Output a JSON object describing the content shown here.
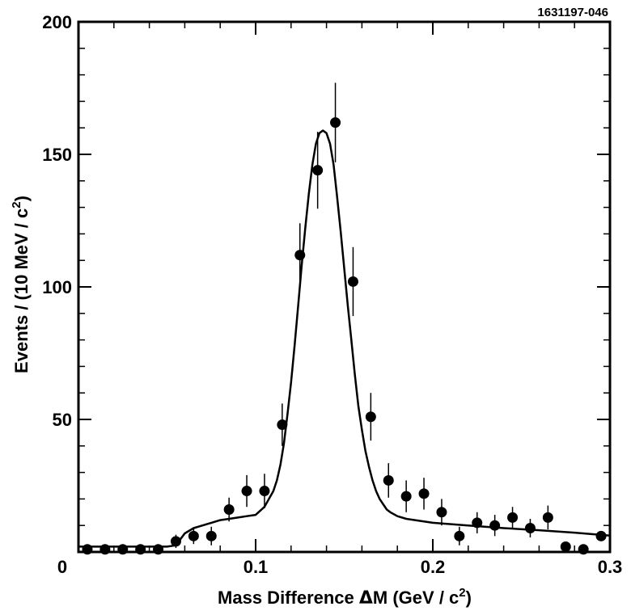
{
  "chart_data": {
    "type": "scatter",
    "plot_id": "1631197-046",
    "xlabel_main": "Mass  Difference  ",
    "xlabel_symbol": "Δ",
    "xlabel_var": "M (GeV / c",
    "xlabel_exp": "2",
    "xlabel_end": ")",
    "ylabel_main": "Events / (10 MeV / c",
    "ylabel_exp": "2",
    "ylabel_end": ")",
    "xlim": [
      0,
      0.3
    ],
    "ylim": [
      0,
      200
    ],
    "x_ticks": [
      {
        "value": 0,
        "label": "0"
      },
      {
        "value": 0.1,
        "label": "0.1"
      },
      {
        "value": 0.2,
        "label": "0.2"
      },
      {
        "value": 0.3,
        "label": "0.3"
      }
    ],
    "y_ticks": [
      {
        "value": 50,
        "label": "50"
      },
      {
        "value": 100,
        "label": "100"
      },
      {
        "value": 150,
        "label": "150"
      },
      {
        "value": 200,
        "label": "200"
      }
    ],
    "series": [
      {
        "name": "data",
        "style": "points-with-errors",
        "x": [
          0.005,
          0.015,
          0.025,
          0.035,
          0.045,
          0.055,
          0.065,
          0.075,
          0.085,
          0.095,
          0.105,
          0.115,
          0.125,
          0.135,
          0.145,
          0.155,
          0.165,
          0.175,
          0.185,
          0.195,
          0.205,
          0.215,
          0.225,
          0.235,
          0.245,
          0.255,
          0.265,
          0.275,
          0.285,
          0.295
        ],
        "y": [
          1,
          1,
          1,
          1,
          1,
          4,
          6,
          6,
          16,
          23,
          23,
          48,
          112,
          144,
          162,
          102,
          51,
          27,
          21,
          22,
          15,
          6,
          11,
          10,
          13,
          9,
          13,
          2,
          1,
          6
        ],
        "err": [
          0,
          0,
          0,
          0,
          0,
          2.5,
          3,
          3.5,
          4.5,
          6,
          6.5,
          8,
          12,
          14.5,
          15,
          13,
          9,
          6.5,
          6,
          6,
          5,
          3.5,
          4,
          4,
          4,
          3.5,
          4.5,
          0,
          0,
          0
        ]
      },
      {
        "name": "fit",
        "style": "line",
        "x": [
          0,
          0.05,
          0.055,
          0.06,
          0.065,
          0.07,
          0.075,
          0.08,
          0.085,
          0.09,
          0.095,
          0.1,
          0.105,
          0.11,
          0.112,
          0.114,
          0.116,
          0.118,
          0.12,
          0.122,
          0.124,
          0.126,
          0.128,
          0.13,
          0.132,
          0.134,
          0.136,
          0.138,
          0.14,
          0.142,
          0.144,
          0.146,
          0.148,
          0.15,
          0.152,
          0.154,
          0.156,
          0.158,
          0.16,
          0.162,
          0.164,
          0.166,
          0.168,
          0.17,
          0.172,
          0.174,
          0.176,
          0.18,
          0.185,
          0.19,
          0.2,
          0.22,
          0.24,
          0.26,
          0.28,
          0.3
        ],
        "y": [
          2,
          2,
          2.5,
          7,
          9,
          10,
          11,
          12,
          12.5,
          13,
          13.5,
          14,
          17,
          23,
          27,
          33,
          41,
          52,
          64,
          78,
          93,
          108,
          122,
          135,
          146,
          154,
          158,
          159,
          158,
          154,
          146,
          134,
          121,
          107,
          93,
          80,
          67,
          55,
          46,
          38,
          32,
          27,
          23,
          20,
          18,
          16,
          15,
          13.5,
          12.5,
          12,
          11,
          10,
          9,
          8.2,
          7.3,
          6.2
        ]
      }
    ]
  }
}
